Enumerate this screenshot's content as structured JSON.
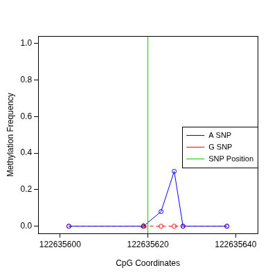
{
  "chart_data": {
    "type": "line",
    "x_label": "CpG Coordinates",
    "y_label": "Methylation Frequency",
    "x": [
      122635602,
      122635619,
      122635623,
      122635626,
      122635628,
      122635638
    ],
    "series": [
      {
        "name": "A SNP",
        "color": "#0000ff",
        "marker": "circle",
        "line_style": "solid",
        "values": [
          0,
          0,
          0.08,
          0.3,
          0,
          0
        ]
      },
      {
        "name": "G SNP",
        "color": "#ff0000",
        "marker": "circle",
        "line_style": "dashed",
        "values": [
          0,
          0,
          0,
          0,
          0,
          0
        ]
      },
      {
        "color": "#ffa500",
        "marker": "triangle",
        "type": "scatter",
        "values": [
          null,
          0,
          null,
          null,
          null,
          null
        ]
      }
    ],
    "vlines": [
      {
        "name": "SNP Position",
        "x": 122635620,
        "color": "#00cc00"
      }
    ],
    "xlim": [
      122635595,
      122635645
    ],
    "xticks": [
      122635600,
      122635620,
      122635640
    ],
    "ylim": [
      -0.04,
      1.04
    ],
    "yticks": [
      {
        "value": 0,
        "label": "0.0"
      },
      0.2,
      0.4,
      0.6,
      0.8,
      {
        "value": 1,
        "label": "1.0"
      }
    ],
    "grid": false,
    "legend": "right"
  }
}
